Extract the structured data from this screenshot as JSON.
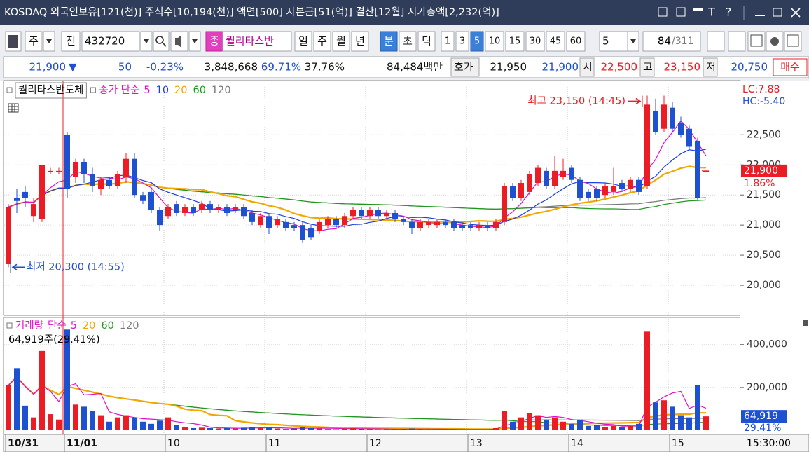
{
  "title_bar": {
    "text": "KOSDAQ 외국인보유[121(천)] 주식수[10,194(천)] 액면[500] 자본금[51(억)] 결산[12월] 시가총액[2,232(억)]",
    "buttons": [
      "T",
      "?"
    ]
  },
  "toolbar": {
    "mode": "주",
    "prefix": "전",
    "code": "432720",
    "tag": "종",
    "name": "퀄리타스반",
    "periods": [
      "일",
      "주",
      "월",
      "년",
      "분",
      "초",
      "틱"
    ],
    "selected_period": "분",
    "intervals": [
      "1",
      "3",
      "5",
      "10",
      "15",
      "30",
      "45",
      "60"
    ],
    "selected_interval": "5",
    "count_select": "5",
    "count": "84",
    "total": "/311"
  },
  "quote": {
    "price": "21,900",
    "arrow": "▼",
    "change": "50",
    "change_pct": "-0.23%",
    "volume": "3,848,668",
    "ratio1": "69.71%",
    "ratio2": "37.76%",
    "amount": "84,484백만",
    "ask_label": "호가",
    "ask": "21,950",
    "bid": "21,900",
    "open_label": "시",
    "open": "22,500",
    "high_label": "고",
    "high": "23,150",
    "low_label": "저",
    "low": "20,750",
    "buy": "매수"
  },
  "chart_data": [
    {
      "type": "candlestick",
      "name": "퀄리타스반도체",
      "ma_label": "종가 단순",
      "ma": [
        {
          "period": 5,
          "color": "#e010c8"
        },
        {
          "period": 10,
          "color": "#1a3ee0"
        },
        {
          "period": 20,
          "color": "#f0a800"
        },
        {
          "period": 60,
          "color": "#1c9a1c"
        },
        {
          "period": 120,
          "color": "#7a7a7a"
        }
      ],
      "up_color": "#ec1c24",
      "down_color": "#1e50d2",
      "categories": [
        "10/31",
        null,
        null,
        null,
        null,
        null,
        null,
        "11/01",
        null,
        null,
        null,
        null,
        null,
        null,
        null,
        null,
        null,
        null,
        null,
        "10",
        null,
        null,
        null,
        null,
        null,
        null,
        null,
        null,
        null,
        null,
        null,
        "11",
        null,
        null,
        null,
        null,
        null,
        null,
        null,
        null,
        null,
        null,
        null,
        "12",
        null,
        null,
        null,
        null,
        null,
        null,
        null,
        null,
        null,
        null,
        null,
        "13",
        null,
        null,
        null,
        null,
        null,
        null,
        null,
        null,
        null,
        null,
        null,
        "14",
        null,
        null,
        null,
        null,
        null,
        null,
        null,
        null,
        null,
        null,
        null,
        "15",
        null,
        null,
        null,
        null
      ],
      "open": [
        20350,
        21450,
        21550,
        21150,
        21100,
        21900,
        21900,
        22500,
        21800,
        22050,
        21850,
        21600,
        21750,
        21650,
        21800,
        22100,
        21500,
        21550,
        21250,
        21150,
        21350,
        21200,
        21300,
        21250,
        21350,
        21250,
        21300,
        21250,
        21300,
        21200,
        21000,
        21150,
        21000,
        21050,
        21000,
        21000,
        20950,
        20900,
        21000,
        21100,
        21000,
        21150,
        21250,
        21150,
        21250,
        21150,
        21200,
        21100,
        21050,
        20950,
        21000,
        21000,
        21050,
        21050,
        21000,
        21000,
        20950,
        21000,
        20950,
        21050,
        21650,
        21450,
        21550,
        21700,
        21900,
        21650,
        21800,
        21950,
        21750,
        21550,
        21600,
        21500,
        21550,
        21700,
        21600,
        21750,
        21650,
        22900,
        22600,
        22950,
        22700,
        22600,
        22400,
        21900
      ],
      "high": [
        21350,
        21600,
        21650,
        21450,
        22000,
        21950,
        21950,
        22550,
        22100,
        22100,
        21950,
        21800,
        21800,
        21900,
        22200,
        22200,
        21550,
        21600,
        21300,
        21350,
        21400,
        21350,
        21350,
        21400,
        21400,
        21350,
        21350,
        21350,
        21350,
        21250,
        21200,
        21200,
        21150,
        21100,
        21050,
        21050,
        21000,
        21100,
        21150,
        21150,
        21200,
        21300,
        21300,
        21300,
        21300,
        21250,
        21250,
        21150,
        21100,
        21100,
        21100,
        21100,
        21100,
        21100,
        21050,
        21050,
        21050,
        21050,
        21100,
        21700,
        21700,
        21750,
        21900,
        22000,
        21950,
        22150,
        22100,
        22000,
        21800,
        21600,
        21650,
        21700,
        21950,
        21750,
        21800,
        21800,
        23150,
        23100,
        23150,
        23050,
        22800,
        22650,
        22450,
        21900
      ],
      "low": [
        20300,
        21200,
        21300,
        21050,
        21050,
        21850,
        21850,
        21450,
        21700,
        21700,
        21550,
        21500,
        21600,
        21600,
        21700,
        21450,
        21350,
        21200,
        20900,
        21100,
        21150,
        21150,
        21150,
        21200,
        21200,
        21200,
        21150,
        21200,
        21100,
        21000,
        20950,
        20850,
        20950,
        20900,
        20900,
        20700,
        20750,
        20850,
        20950,
        20950,
        20950,
        21100,
        21100,
        21100,
        21100,
        21100,
        21050,
        21000,
        20850,
        20900,
        20950,
        20950,
        20950,
        20900,
        20900,
        20900,
        20900,
        20900,
        20900,
        21000,
        21400,
        21400,
        21500,
        21650,
        21600,
        21600,
        21750,
        21700,
        21400,
        21400,
        21400,
        21450,
        21500,
        21550,
        21550,
        21500,
        21600,
        22500,
        22550,
        22550,
        22450,
        22250,
        21400,
        21900
      ],
      "close": [
        21300,
        21400,
        21450,
        21350,
        22000,
        21900,
        21900,
        21600,
        22050,
        21850,
        21650,
        21750,
        21650,
        21850,
        22100,
        21500,
        21400,
        21250,
        21000,
        21300,
        21200,
        21300,
        21200,
        21350,
        21250,
        21300,
        21200,
        21300,
        21150,
        21050,
        21150,
        20950,
        21100,
        20950,
        20950,
        20750,
        20800,
        21050,
        21100,
        21000,
        21150,
        21250,
        21150,
        21250,
        21150,
        21200,
        21100,
        21050,
        20950,
        21050,
        21050,
        21050,
        21000,
        20950,
        20950,
        20950,
        21000,
        20950,
        21050,
        21650,
        21450,
        21700,
        21850,
        21950,
        21650,
        21900,
        21900,
        21750,
        21450,
        21450,
        21450,
        21650,
        21650,
        21600,
        21750,
        21550,
        23000,
        22550,
        23000,
        22600,
        22500,
        22300,
        21450,
        21900
      ],
      "ylim": [
        19500,
        23400
      ],
      "yticks": [
        {
          "value": 20000,
          "label": "20,000"
        },
        {
          "value": 20500,
          "label": "20,500"
        },
        {
          "value": 21000,
          "label": "21,000"
        },
        {
          "value": 21500,
          "label": "21,500"
        },
        {
          "value": 22000,
          "label": "22,000"
        },
        {
          "value": 22500,
          "label": "22,500"
        }
      ],
      "lc": "LC:7.88",
      "hc": "HC:-5.40",
      "current": {
        "value": 21900,
        "label": "21,900"
      },
      "current_pct": "1.86%",
      "annotations": [
        {
          "text": "최고 23,150 (14:45)",
          "value": 23150
        },
        {
          "text": "최저 20,300 (14:55)",
          "value": 20300
        }
      ],
      "time": "15:30:00"
    },
    {
      "type": "bar",
      "name": "거래량",
      "ma_label": "단순",
      "ma": [
        {
          "period": 5,
          "color": "#e010c8"
        },
        {
          "period": 20,
          "color": "#f0a800"
        },
        {
          "period": 60,
          "color": "#1c9a1c"
        },
        {
          "period": 120,
          "color": "#7a7a7a"
        }
      ],
      "info": "64,919주(29.41%)",
      "values": [
        210000,
        290000,
        115000,
        60000,
        370000,
        75000,
        50000,
        470000,
        120000,
        110000,
        90000,
        70000,
        40000,
        60000,
        70000,
        60000,
        40000,
        30000,
        45000,
        60000,
        25000,
        15000,
        10000,
        12000,
        10000,
        8000,
        10000,
        8000,
        12000,
        15000,
        10000,
        12000,
        8000,
        6000,
        8000,
        15000,
        10000,
        8000,
        6000,
        5000,
        8000,
        10000,
        6000,
        5000,
        4000,
        5000,
        4000,
        6000,
        8000,
        5000,
        4000,
        3000,
        4000,
        5000,
        4000,
        3000,
        4000,
        3000,
        10000,
        90000,
        40000,
        60000,
        80000,
        70000,
        50000,
        60000,
        40000,
        30000,
        50000,
        20000,
        25000,
        15000,
        20000,
        15000,
        20000,
        30000,
        460000,
        130000,
        140000,
        110000,
        70000,
        60000,
        210000,
        64919
      ],
      "ylim": [
        0,
        520000
      ],
      "yticks": [
        {
          "value": 200000,
          "label": "200,000"
        },
        {
          "value": 400000,
          "label": "400,000"
        }
      ],
      "current": {
        "value": 64919,
        "label": "64,919"
      },
      "ratio": "29.41%"
    }
  ]
}
